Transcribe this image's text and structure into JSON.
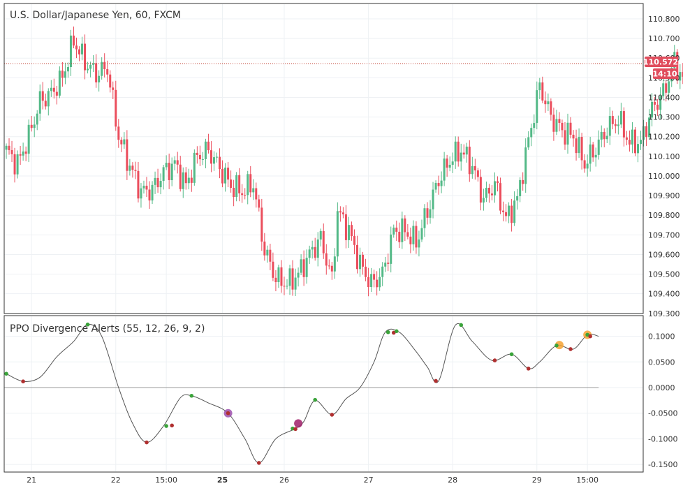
{
  "colors": {
    "up": "#53b987",
    "down": "#eb4d5c",
    "grid": "#eef1f4",
    "pane_border": "#333333",
    "price_line": "#c0392b",
    "osc_line": "#555555",
    "zero_line": "#999999",
    "dot_green": "#3aa33a",
    "dot_red": "#b03030",
    "purple": "#9c4fae",
    "magenta": "#a0206a",
    "orange": "#f4a233"
  },
  "chart_data": [
    {
      "type": "candlestick",
      "title": "U.S. Dollar/Japanese Yen, 60, FXCM",
      "price_badge": "110.572",
      "countdown_badge": "14:10",
      "current_price": 110.572,
      "ylim": [
        109.27,
        110.87
      ],
      "y_ticks": [
        "110.800",
        "110.700",
        "110.600",
        "110.500",
        "110.400",
        "110.300",
        "110.200",
        "110.100",
        "110.000",
        "109.900",
        "109.800",
        "109.700",
        "109.600",
        "109.500",
        "109.400",
        "109.300"
      ],
      "y_tick_values": [
        110.8,
        110.7,
        110.6,
        110.5,
        110.4,
        110.3,
        110.2,
        110.1,
        110.0,
        109.9,
        109.8,
        109.7,
        109.6,
        109.5,
        109.4,
        109.3
      ],
      "waypoints": [
        [
          0,
          110.13
        ],
        [
          4,
          110.06
        ],
        [
          8,
          110.2
        ],
        [
          12,
          110.38
        ],
        [
          16,
          110.42
        ],
        [
          20,
          110.5
        ],
        [
          24,
          110.69
        ],
        [
          28,
          110.58
        ],
        [
          32,
          110.52
        ],
        [
          36,
          110.55
        ],
        [
          40,
          110.2
        ],
        [
          44,
          110.05
        ],
        [
          48,
          109.92
        ],
        [
          52,
          109.93
        ],
        [
          56,
          110.02
        ],
        [
          60,
          110.06
        ],
        [
          64,
          109.95
        ],
        [
          68,
          110.1
        ],
        [
          72,
          110.13
        ],
        [
          76,
          110.04
        ],
        [
          80,
          109.95
        ],
        [
          84,
          109.92
        ],
        [
          88,
          109.96
        ],
        [
          92,
          109.62
        ],
        [
          96,
          109.48
        ],
        [
          100,
          109.45
        ],
        [
          104,
          109.5
        ],
        [
          108,
          109.6
        ],
        [
          112,
          109.68
        ],
        [
          116,
          109.47
        ],
        [
          118,
          109.82
        ],
        [
          122,
          109.72
        ],
        [
          126,
          109.55
        ],
        [
          130,
          109.45
        ],
        [
          134,
          109.5
        ],
        [
          138,
          109.72
        ],
        [
          142,
          109.72
        ],
        [
          146,
          109.66
        ],
        [
          150,
          109.82
        ],
        [
          154,
          109.98
        ],
        [
          158,
          110.08
        ],
        [
          162,
          110.13
        ],
        [
          166,
          110.05
        ],
        [
          170,
          109.88
        ],
        [
          174,
          109.96
        ],
        [
          178,
          109.78
        ],
        [
          182,
          109.88
        ],
        [
          186,
          110.18
        ],
        [
          190,
          110.46
        ],
        [
          194,
          110.3
        ],
        [
          198,
          110.23
        ],
        [
          202,
          110.2
        ],
        [
          206,
          110.06
        ],
        [
          210,
          110.14
        ],
        [
          214,
          110.24
        ],
        [
          218,
          110.29
        ],
        [
          222,
          110.17
        ],
        [
          226,
          110.17
        ],
        [
          230,
          110.34
        ],
        [
          234,
          110.42
        ],
        [
          238,
          110.58
        ],
        [
          242,
          110.46
        ],
        [
          246,
          110.44
        ],
        [
          250,
          110.46
        ],
        [
          254,
          110.72
        ],
        [
          258,
          110.62
        ],
        [
          262,
          110.72
        ],
        [
          263,
          110.6
        ]
      ],
      "x_ticks": [
        {
          "label": "21",
          "bar": 9,
          "bold": false
        },
        {
          "label": "22",
          "bar": 39,
          "bold": false
        },
        {
          "label": "15:00",
          "bar": 57,
          "bold": false
        },
        {
          "label": "25",
          "bar": 77,
          "bold": true
        },
        {
          "label": "26",
          "bar": 99,
          "bold": false
        },
        {
          "label": "27",
          "bar": 129,
          "bold": false
        },
        {
          "label": "28",
          "bar": 159,
          "bold": false
        },
        {
          "label": "29",
          "bar": 189,
          "bold": false
        },
        {
          "label": "15:00",
          "bar": 207,
          "bold": false
        }
      ]
    },
    {
      "type": "line",
      "title": "PPO Divergence Alerts (55, 12, 26, 9, 2)",
      "ylim": [
        -0.16,
        0.12
      ],
      "y_ticks": [
        "0.1000",
        "0.0500",
        "0.0000",
        "-0.0500",
        "-0.1000",
        "-0.1500"
      ],
      "y_tick_values": [
        0.1,
        0.05,
        0.0,
        -0.05,
        -0.1,
        -0.15
      ],
      "curve": [
        [
          0,
          0.027
        ],
        [
          6,
          0.012
        ],
        [
          12,
          0.02
        ],
        [
          18,
          0.06
        ],
        [
          24,
          0.09
        ],
        [
          29,
          0.123
        ],
        [
          34,
          0.1
        ],
        [
          40,
          0.0
        ],
        [
          45,
          -0.07
        ],
        [
          50,
          -0.107
        ],
        [
          56,
          -0.075
        ],
        [
          62,
          -0.02
        ],
        [
          66,
          -0.016
        ],
        [
          72,
          -0.03
        ],
        [
          79,
          -0.05
        ],
        [
          85,
          -0.1
        ],
        [
          90,
          -0.147
        ],
        [
          96,
          -0.1
        ],
        [
          103,
          -0.08
        ],
        [
          106,
          -0.066
        ],
        [
          110,
          -0.025
        ],
        [
          116,
          -0.053
        ],
        [
          121,
          -0.022
        ],
        [
          126,
          0.0
        ],
        [
          131,
          0.05
        ],
        [
          135,
          0.108
        ],
        [
          140,
          0.108
        ],
        [
          146,
          0.07
        ],
        [
          150,
          0.04
        ],
        [
          154,
          0.013
        ],
        [
          160,
          0.122
        ],
        [
          166,
          0.09
        ],
        [
          173,
          0.053
        ],
        [
          180,
          0.065
        ],
        [
          186,
          0.037
        ],
        [
          190,
          0.05
        ],
        [
          196,
          0.082
        ],
        [
          202,
          0.075
        ],
        [
          207,
          0.103
        ],
        [
          211,
          0.1
        ]
      ],
      "dots": [
        {
          "bar": 0,
          "value": 0.027,
          "kind": "green"
        },
        {
          "bar": 6,
          "value": 0.012,
          "kind": "red"
        },
        {
          "bar": 29,
          "value": 0.123,
          "kind": "green"
        },
        {
          "bar": 50,
          "value": -0.107,
          "kind": "red"
        },
        {
          "bar": 57,
          "value": -0.075,
          "kind": "green"
        },
        {
          "bar": 59,
          "value": -0.074,
          "kind": "red"
        },
        {
          "bar": 66,
          "value": -0.016,
          "kind": "green"
        },
        {
          "bar": 79,
          "value": -0.05,
          "kind": "red"
        },
        {
          "bar": 90,
          "value": -0.147,
          "kind": "red"
        },
        {
          "bar": 102,
          "value": -0.08,
          "kind": "green"
        },
        {
          "bar": 103,
          "value": -0.081,
          "kind": "red"
        },
        {
          "bar": 110,
          "value": -0.024,
          "kind": "green"
        },
        {
          "bar": 116,
          "value": -0.053,
          "kind": "red"
        },
        {
          "bar": 136,
          "value": 0.108,
          "kind": "green"
        },
        {
          "bar": 138,
          "value": 0.107,
          "kind": "red"
        },
        {
          "bar": 139,
          "value": 0.11,
          "kind": "green"
        },
        {
          "bar": 153,
          "value": 0.013,
          "kind": "red"
        },
        {
          "bar": 162,
          "value": 0.122,
          "kind": "green"
        },
        {
          "bar": 174,
          "value": 0.053,
          "kind": "red"
        },
        {
          "bar": 180,
          "value": 0.065,
          "kind": "green"
        },
        {
          "bar": 186,
          "value": 0.037,
          "kind": "red"
        },
        {
          "bar": 196,
          "value": 0.082,
          "kind": "green"
        },
        {
          "bar": 201,
          "value": 0.075,
          "kind": "red"
        },
        {
          "bar": 207,
          "value": 0.103,
          "kind": "green"
        },
        {
          "bar": 208,
          "value": 0.1,
          "kind": "red"
        }
      ],
      "markers": [
        {
          "bar": 79,
          "value": -0.05,
          "kind": "purple"
        },
        {
          "bar": 104,
          "value": -0.07,
          "kind": "magenta"
        },
        {
          "bar": 197,
          "value": 0.083,
          "kind": "orange"
        },
        {
          "bar": 207,
          "value": 0.103,
          "kind": "orange"
        }
      ]
    }
  ]
}
